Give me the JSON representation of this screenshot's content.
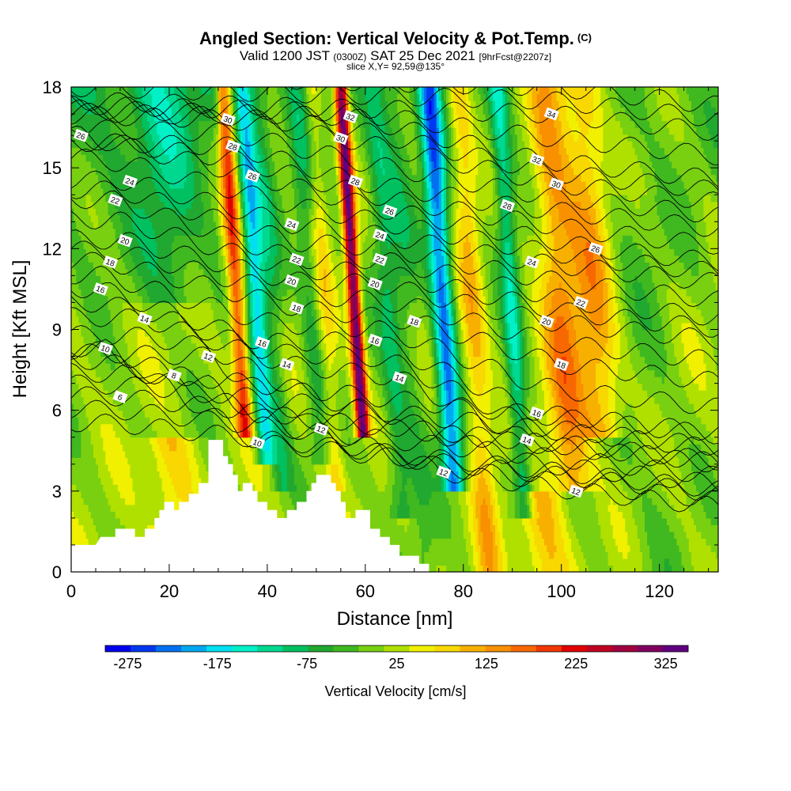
{
  "header": {
    "title": "Angled Section: Vertical Velocity & Pot.Temp.",
    "copyright": "(C)",
    "valid_prefix": "Valid 1200 JST",
    "valid_utc": "(0300Z)",
    "valid_date": "SAT 25 Dec 2021",
    "forecast": "[9hrFcst@2207z]",
    "slice": "slice X,Y= 92,59@135°"
  },
  "chart_data": {
    "type": "heatmap",
    "xlabel": "Distance [nm]",
    "ylabel": "Height [Kft MSL]",
    "xlim": [
      0,
      132
    ],
    "ylim": [
      0,
      18
    ],
    "x_ticks": [
      0,
      20,
      40,
      60,
      80,
      100,
      120
    ],
    "y_ticks": [
      0,
      3,
      6,
      9,
      12,
      15,
      18
    ],
    "colorbar": {
      "label": "Vertical Velocity [cm/s]",
      "tick_labels": [
        "-275",
        "-175",
        "-75",
        "25",
        "125",
        "225",
        "325"
      ],
      "tick_values": [
        -275,
        -175,
        -75,
        25,
        125,
        225,
        325
      ],
      "range": [
        -300,
        350
      ],
      "colors": [
        "#0000ee",
        "#0038f0",
        "#0070f0",
        "#00a8f0",
        "#00e0f0",
        "#00f0c8",
        "#00d890",
        "#00c060",
        "#20a830",
        "#40b820",
        "#78d010",
        "#b0e000",
        "#f0f000",
        "#f8d800",
        "#f8b000",
        "#f89000",
        "#f86800",
        "#f03800",
        "#e00000",
        "#c00020",
        "#a00040",
        "#800060",
        "#600080"
      ]
    },
    "velocity_field": {
      "note_units": "cm/s",
      "background": 10,
      "bands": [
        {
          "x": 31,
          "width": 1.6,
          "value": 190,
          "top": 18,
          "bottom": 5
        },
        {
          "x": 35,
          "width": 1.8,
          "value": -170,
          "top": 18,
          "bottom": 4
        },
        {
          "x": 38,
          "width": 2.2,
          "value": -70,
          "top": 18,
          "bottom": 3
        },
        {
          "x": 46,
          "width": 2.0,
          "value": -60,
          "top": 18,
          "bottom": 4
        },
        {
          "x": 49,
          "width": 1.8,
          "value": 60,
          "top": 18,
          "bottom": 3
        },
        {
          "x": 55,
          "width": 1.3,
          "value": 330,
          "top": 18,
          "bottom": 5
        },
        {
          "x": 62,
          "width": 2.5,
          "value": -80,
          "top": 18,
          "bottom": 2
        },
        {
          "x": 66,
          "width": 2.5,
          "value": -40,
          "top": 18,
          "bottom": 0
        },
        {
          "x": 73,
          "width": 2.2,
          "value": -230,
          "top": 18,
          "bottom": 3
        },
        {
          "x": 79,
          "width": 2.5,
          "value": 90,
          "top": 18,
          "bottom": 0
        },
        {
          "x": 87,
          "width": 1.8,
          "value": -120,
          "top": 18,
          "bottom": 2
        },
        {
          "x": 97,
          "width": 4,
          "value": 130,
          "top": 18,
          "bottom": 3
        },
        {
          "x": 104,
          "width": 4,
          "value": 110,
          "top": 18,
          "bottom": 5
        },
        {
          "x": 115,
          "width": 6,
          "value": -20,
          "top": 14,
          "bottom": 0
        },
        {
          "x": 18,
          "width": 6,
          "value": -60,
          "top": 18,
          "bottom": 10
        },
        {
          "x": 20,
          "width": 5,
          "value": 80,
          "top": 5,
          "bottom": 1
        },
        {
          "x": 96,
          "width": 5,
          "value": 90,
          "top": 3,
          "bottom": 0
        }
      ]
    },
    "terrain_kft": [
      [
        0,
        1.0
      ],
      [
        5,
        1.0
      ],
      [
        6,
        1.3
      ],
      [
        9,
        1.3
      ],
      [
        9,
        1.6
      ],
      [
        13,
        1.6
      ],
      [
        13,
        1.3
      ],
      [
        15,
        1.3
      ],
      [
        15,
        1.6
      ],
      [
        17,
        1.6
      ],
      [
        17,
        2.0
      ],
      [
        18,
        2.0
      ],
      [
        18,
        2.3
      ],
      [
        19,
        2.3
      ],
      [
        19,
        2.6
      ],
      [
        21,
        2.6
      ],
      [
        21,
        2.3
      ],
      [
        22,
        2.3
      ],
      [
        22,
        2.6
      ],
      [
        24,
        2.6
      ],
      [
        24,
        2.9
      ],
      [
        26,
        2.9
      ],
      [
        26,
        3.3
      ],
      [
        28,
        3.3
      ],
      [
        28,
        4.9
      ],
      [
        31,
        4.9
      ],
      [
        31,
        4.3
      ],
      [
        32,
        4.3
      ],
      [
        32,
        4.0
      ],
      [
        33,
        4.0
      ],
      [
        33,
        3.6
      ],
      [
        34,
        3.6
      ],
      [
        34,
        3.0
      ],
      [
        35,
        3.0
      ],
      [
        35,
        3.3
      ],
      [
        37,
        3.3
      ],
      [
        37,
        3.0
      ],
      [
        38,
        3.0
      ],
      [
        38,
        2.6
      ],
      [
        40,
        2.6
      ],
      [
        40,
        2.3
      ],
      [
        42,
        2.3
      ],
      [
        42,
        2.0
      ],
      [
        44,
        2.0
      ],
      [
        44,
        2.3
      ],
      [
        46,
        2.3
      ],
      [
        46,
        2.6
      ],
      [
        48,
        2.6
      ],
      [
        48,
        3.0
      ],
      [
        49,
        3.0
      ],
      [
        49,
        3.3
      ],
      [
        50,
        3.3
      ],
      [
        50,
        3.6
      ],
      [
        53,
        3.6
      ],
      [
        53,
        3.3
      ],
      [
        54,
        3.3
      ],
      [
        54,
        3.0
      ],
      [
        55,
        3.0
      ],
      [
        55,
        2.6
      ],
      [
        56,
        2.6
      ],
      [
        56,
        2.0
      ],
      [
        58,
        2.0
      ],
      [
        58,
        2.3
      ],
      [
        61,
        2.3
      ],
      [
        61,
        1.6
      ],
      [
        63,
        1.6
      ],
      [
        63,
        1.3
      ],
      [
        65,
        1.3
      ],
      [
        65,
        1.0
      ],
      [
        67,
        1.0
      ],
      [
        67,
        0.6
      ],
      [
        71,
        0.6
      ],
      [
        71,
        0.3
      ],
      [
        73,
        0.3
      ],
      [
        73,
        0
      ]
    ],
    "theta_contours": [
      {
        "value": 6,
        "label_pos": [
          10,
          6.5
        ]
      },
      {
        "value": 8,
        "label_pos": [
          21,
          7.3
        ]
      },
      {
        "value": 10,
        "label_pos": [
          7,
          8.3
        ]
      },
      {
        "value": 10,
        "label_pos": [
          38,
          4.8
        ]
      },
      {
        "value": 12,
        "label_pos": [
          28,
          8.0
        ]
      },
      {
        "value": 12,
        "label_pos": [
          51,
          5.3
        ]
      },
      {
        "value": 12,
        "label_pos": [
          76,
          3.7
        ]
      },
      {
        "value": 12,
        "label_pos": [
          103,
          3.0
        ]
      },
      {
        "value": 14,
        "label_pos": [
          15,
          9.4
        ]
      },
      {
        "value": 14,
        "label_pos": [
          44,
          7.7
        ]
      },
      {
        "value": 14,
        "label_pos": [
          67,
          7.2
        ]
      },
      {
        "value": 14,
        "label_pos": [
          93,
          4.9
        ]
      },
      {
        "value": 16,
        "label_pos": [
          6,
          10.5
        ]
      },
      {
        "value": 16,
        "label_pos": [
          39,
          8.5
        ]
      },
      {
        "value": 16,
        "label_pos": [
          62,
          8.6
        ]
      },
      {
        "value": 16,
        "label_pos": [
          95,
          5.9
        ]
      },
      {
        "value": 18,
        "label_pos": [
          8,
          11.5
        ]
      },
      {
        "value": 18,
        "label_pos": [
          46,
          9.8
        ]
      },
      {
        "value": 18,
        "label_pos": [
          70,
          9.3
        ]
      },
      {
        "value": 18,
        "label_pos": [
          100,
          7.7
        ]
      },
      {
        "value": 20,
        "label_pos": [
          11,
          12.3
        ]
      },
      {
        "value": 20,
        "label_pos": [
          45,
          10.8
        ]
      },
      {
        "value": 20,
        "label_pos": [
          62,
          10.7
        ]
      },
      {
        "value": 20,
        "label_pos": [
          97,
          9.3
        ]
      },
      {
        "value": 22,
        "label_pos": [
          9,
          13.8
        ]
      },
      {
        "value": 22,
        "label_pos": [
          46,
          11.6
        ]
      },
      {
        "value": 22,
        "label_pos": [
          63,
          11.6
        ]
      },
      {
        "value": 22,
        "label_pos": [
          104,
          10.0
        ]
      },
      {
        "value": 24,
        "label_pos": [
          12,
          14.5
        ]
      },
      {
        "value": 24,
        "label_pos": [
          45,
          12.9
        ]
      },
      {
        "value": 24,
        "label_pos": [
          63,
          12.5
        ]
      },
      {
        "value": 24,
        "label_pos": [
          94,
          11.5
        ]
      },
      {
        "value": 26,
        "label_pos": [
          2,
          16.2
        ]
      },
      {
        "value": 26,
        "label_pos": [
          37,
          14.7
        ]
      },
      {
        "value": 26,
        "label_pos": [
          65,
          13.4
        ]
      },
      {
        "value": 26,
        "label_pos": [
          107,
          12.0
        ]
      },
      {
        "value": 28,
        "label_pos": [
          33,
          15.8
        ]
      },
      {
        "value": 28,
        "label_pos": [
          58,
          14.5
        ]
      },
      {
        "value": 28,
        "label_pos": [
          89,
          13.6
        ]
      },
      {
        "value": 30,
        "label_pos": [
          32,
          16.8
        ]
      },
      {
        "value": 30,
        "label_pos": [
          55,
          16.1
        ]
      },
      {
        "value": 30,
        "label_pos": [
          99,
          14.4
        ]
      },
      {
        "value": 32,
        "label_pos": [
          57,
          16.9
        ]
      },
      {
        "value": 32,
        "label_pos": [
          95,
          15.3
        ]
      },
      {
        "value": 34,
        "label_pos": [
          98,
          17.0
        ]
      }
    ]
  }
}
